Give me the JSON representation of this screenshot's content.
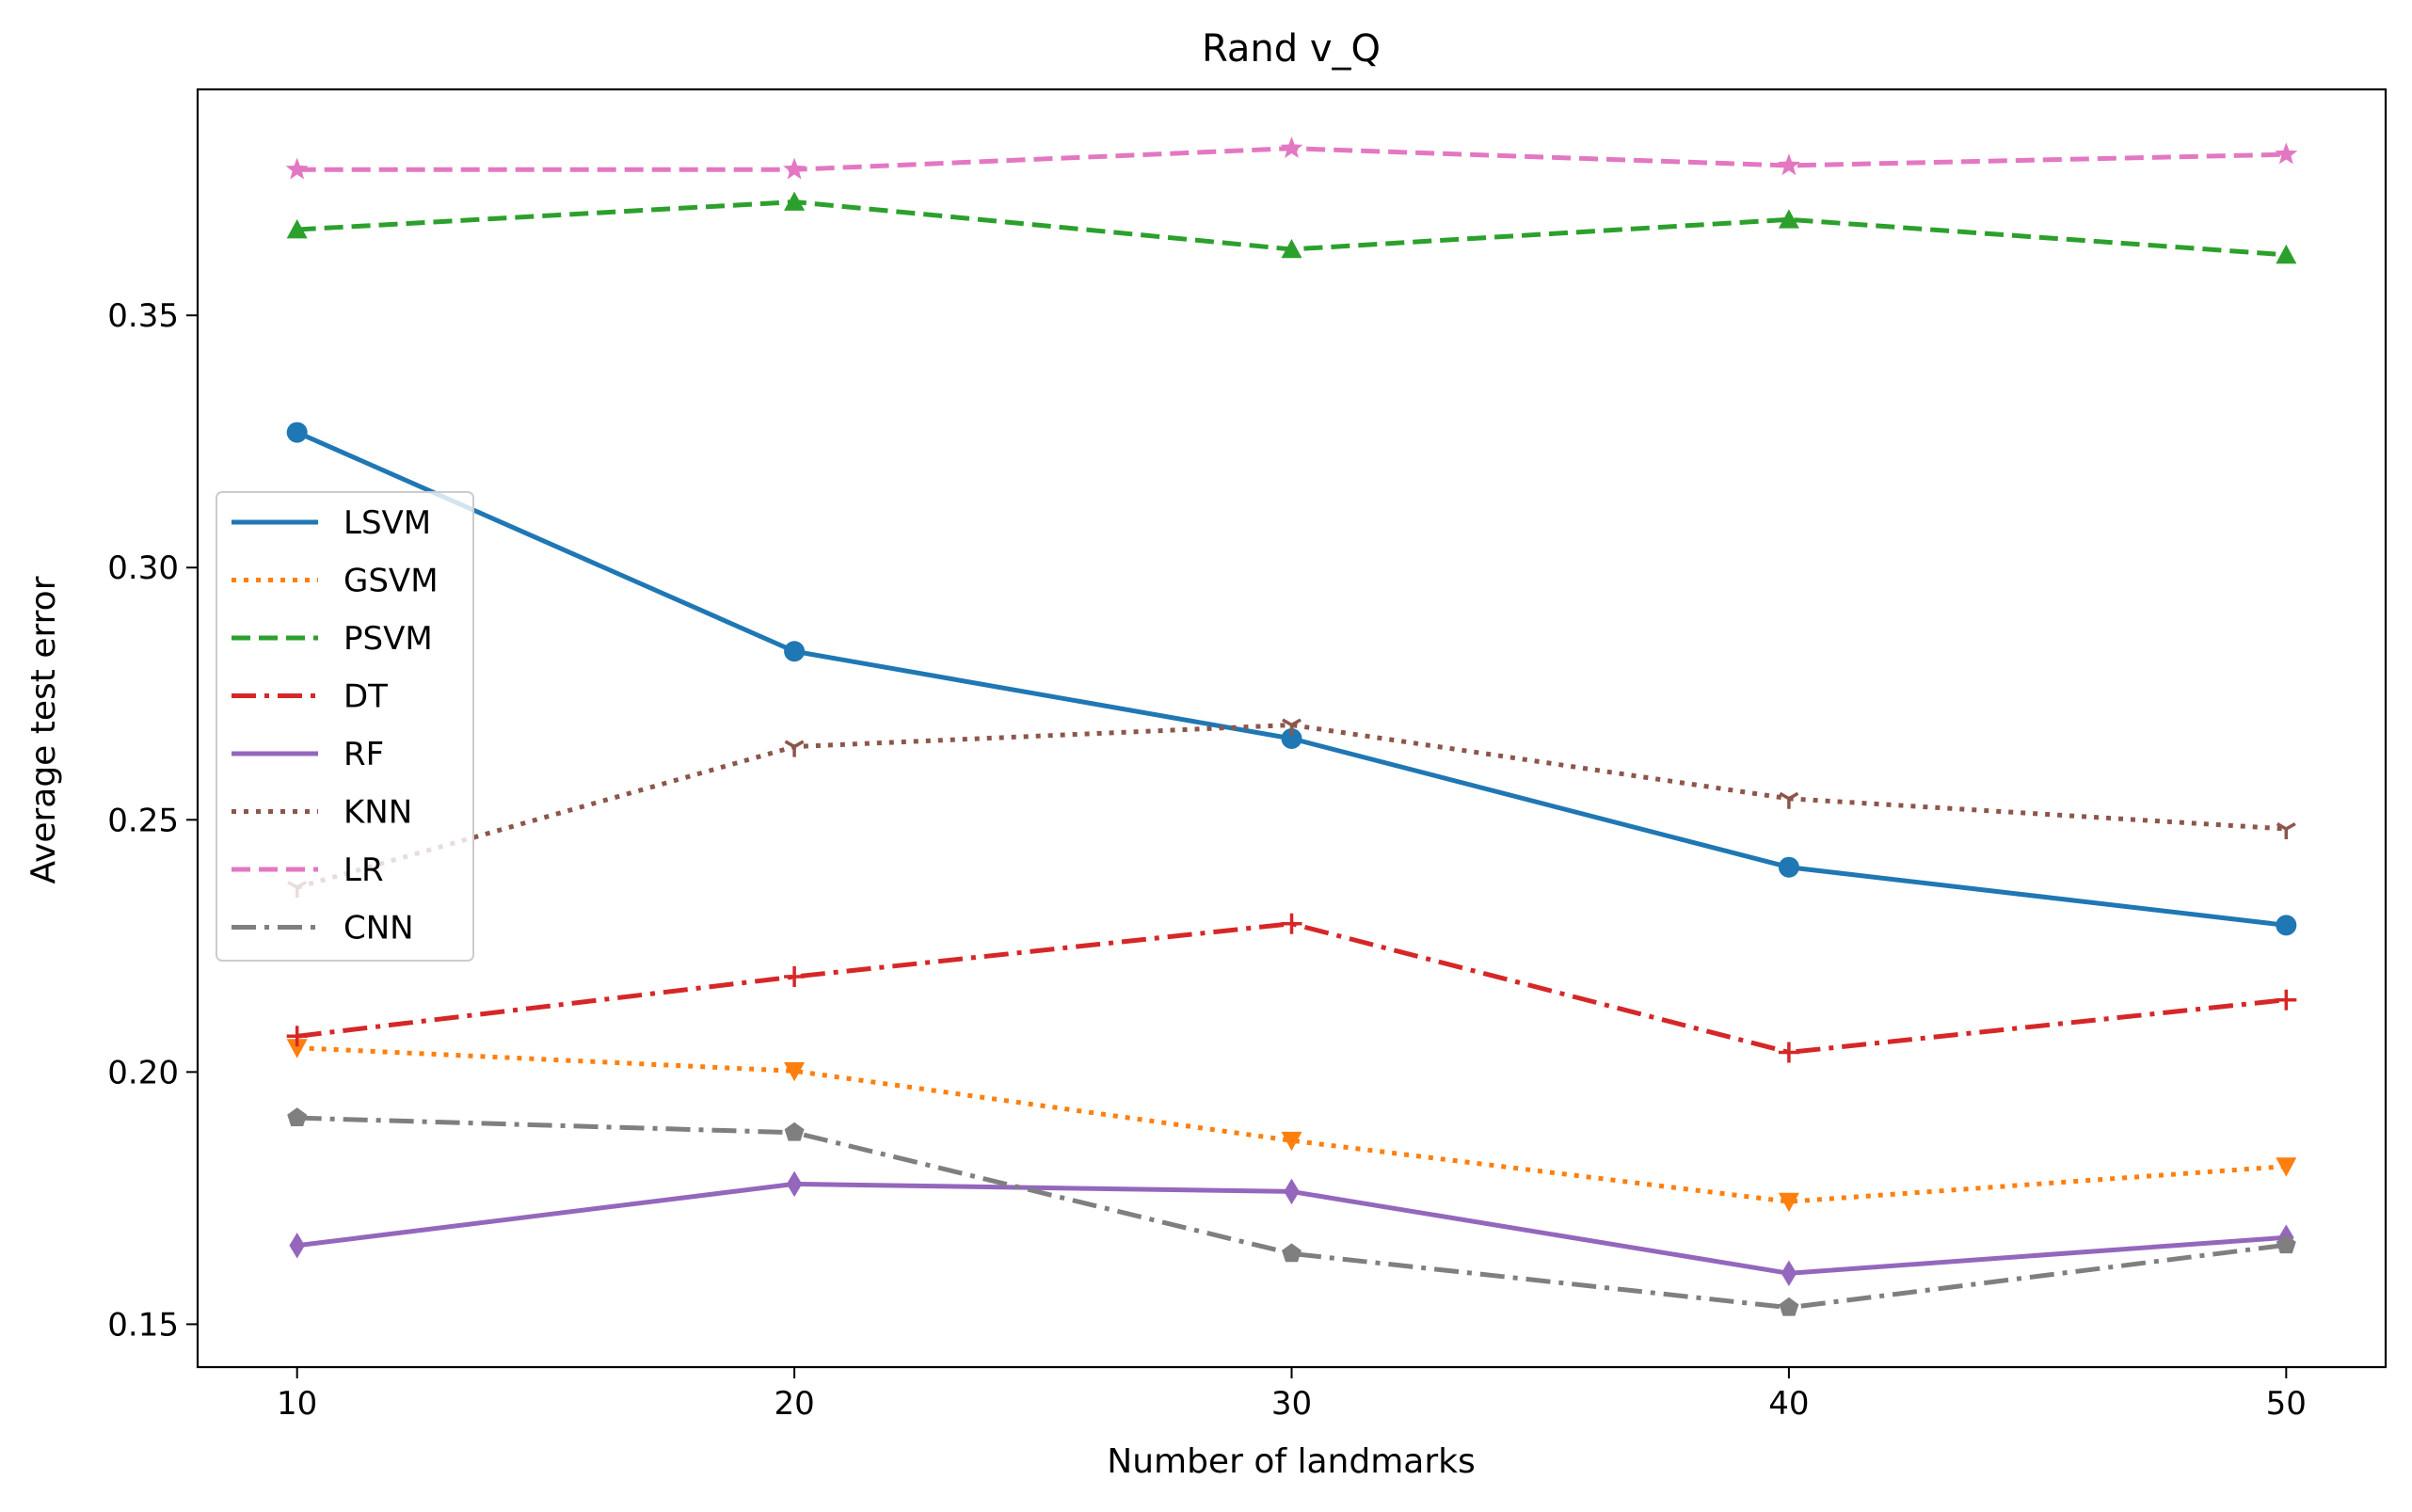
{
  "chart_data": {
    "type": "line",
    "title": "Rand v_Q",
    "xlabel": "Number of landmarks",
    "ylabel": "Average test error",
    "x": [
      10,
      20,
      30,
      40,
      50
    ],
    "xlim": [
      8,
      52
    ],
    "ylim": [
      0.1415,
      0.3948
    ],
    "xticks": [
      "10",
      "20",
      "30",
      "40",
      "50"
    ],
    "xtick_values": [
      10,
      20,
      30,
      40,
      50
    ],
    "yticks": [
      "0.15",
      "0.20",
      "0.25",
      "0.30",
      "0.35"
    ],
    "ytick_values": [
      0.15,
      0.2,
      0.25,
      0.3,
      0.35
    ],
    "grid": false,
    "legend_position": "center-left",
    "series": [
      {
        "name": "LSVM",
        "values": [
          0.3268,
          0.2834,
          0.2661,
          0.2406,
          0.2291
        ],
        "color": "#1f77b4",
        "dash": "solid",
        "marker": "circle"
      },
      {
        "name": "GSVM",
        "values": [
          0.2048,
          0.2002,
          0.1864,
          0.1743,
          0.1813
        ],
        "color": "#ff7f0e",
        "dash": "dotted",
        "marker": "triangle-down"
      },
      {
        "name": "PSVM",
        "values": [
          0.367,
          0.3725,
          0.3631,
          0.369,
          0.362
        ],
        "color": "#2ca02c",
        "dash": "dashed",
        "marker": "triangle-up"
      },
      {
        "name": "DT",
        "values": [
          0.2071,
          0.2189,
          0.2294,
          0.2039,
          0.2143
        ],
        "color": "#d62728",
        "dash": "dashdot",
        "marker": "plus"
      },
      {
        "name": "RF",
        "values": [
          0.1656,
          0.1778,
          0.1763,
          0.1601,
          0.1672
        ],
        "color": "#9467bd",
        "dash": "solid",
        "marker": "thin-diamond"
      },
      {
        "name": "KNN",
        "values": [
          0.2366,
          0.2645,
          0.2688,
          0.2542,
          0.2482
        ],
        "color": "#8c564b",
        "dash": "dotted",
        "marker": "tri-down"
      },
      {
        "name": "LR",
        "values": [
          0.3789,
          0.3789,
          0.3831,
          0.3797,
          0.3819
        ],
        "color": "#e377c2",
        "dash": "dashed",
        "marker": "star"
      },
      {
        "name": "CNN",
        "values": [
          0.1909,
          0.188,
          0.164,
          0.1533,
          0.1657
        ],
        "color": "#7f7f7f",
        "dash": "dashdot",
        "marker": "pentagon"
      }
    ]
  }
}
